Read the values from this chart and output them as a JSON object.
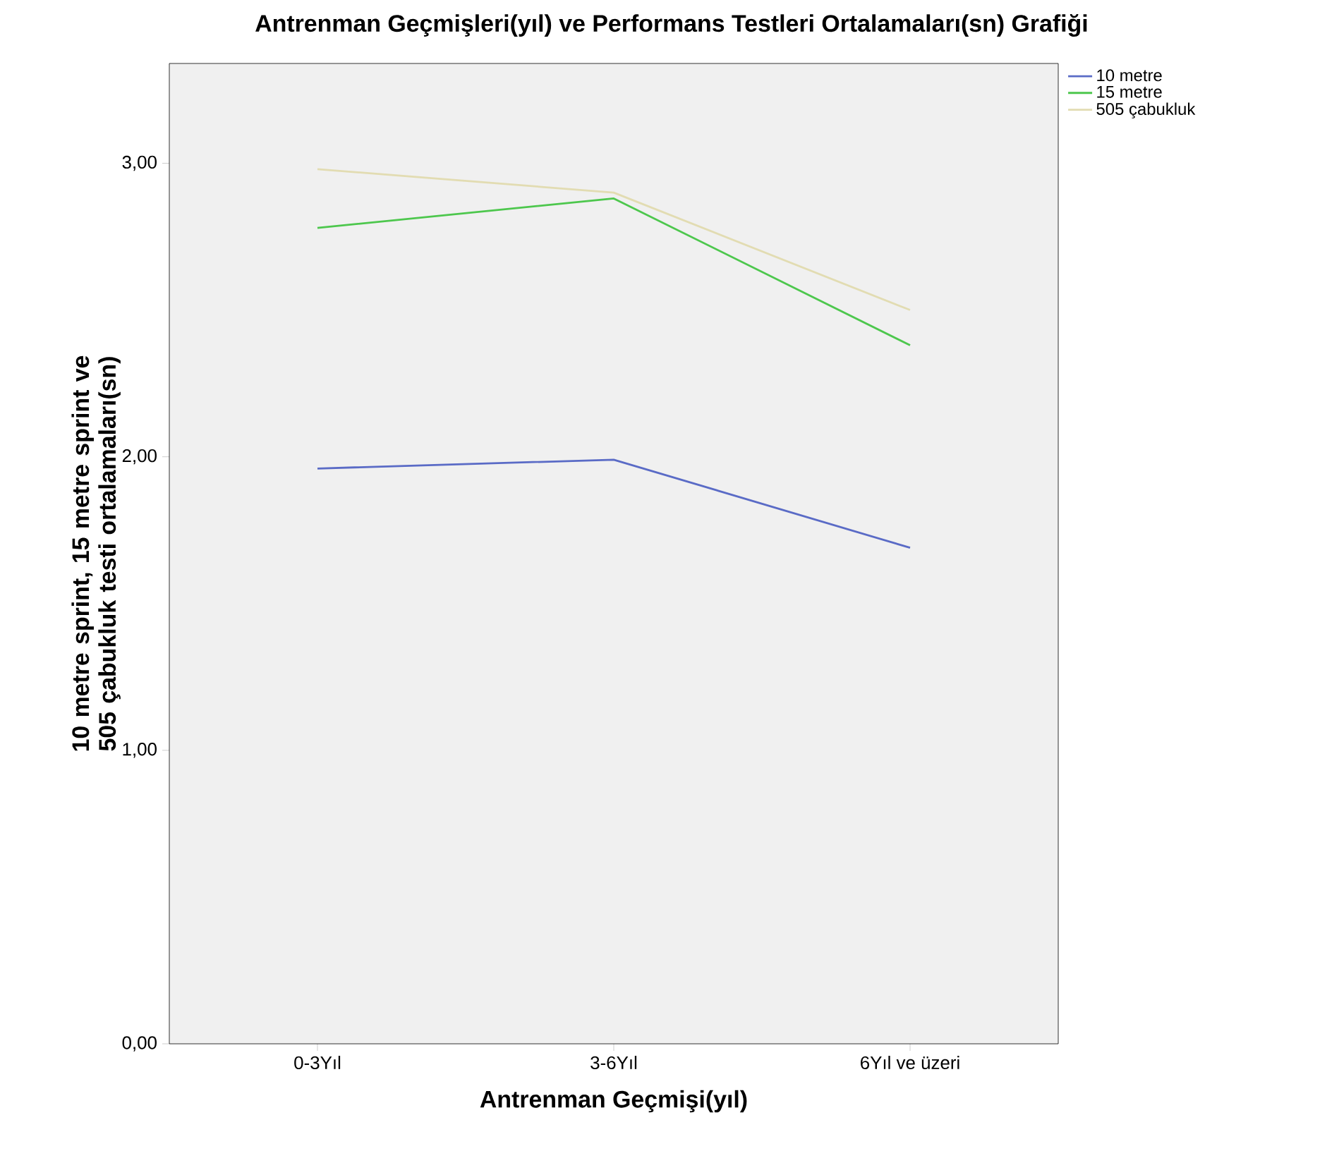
{
  "chart_data": {
    "type": "line",
    "title": "Antrenman Geçmişleri(yıl) ve Performans Testleri Ortalamaları(sn) Grafiği",
    "xlabel": "Antrenman Geçmişi(yıl)",
    "ylabel": "10 metre sprint, 15 metre sprint ve 505 çabukluk testi ortalamaları(sn)",
    "categories": [
      "0-3Yıl",
      "3-6Yıl",
      "6Yıl ve üzeri"
    ],
    "series": [
      {
        "name": "10 metre",
        "color": "#5a6bc6",
        "values": [
          1.96,
          1.99,
          1.69
        ]
      },
      {
        "name": "15 metre",
        "color": "#4dc74d",
        "values": [
          2.78,
          2.88,
          2.38
        ]
      },
      {
        "name": "505 çabukluk",
        "color": "#e2dcb2",
        "values": [
          2.98,
          2.9,
          2.5
        ]
      }
    ],
    "ylim": [
      0,
      3.34
    ],
    "yticks": [
      {
        "value": 0,
        "label": "0,00"
      },
      {
        "value": 1,
        "label": "1,00"
      },
      {
        "value": 2,
        "label": "2,00"
      },
      {
        "value": 3,
        "label": "3,00"
      }
    ],
    "grid": false,
    "legend": "top right",
    "marker": "none",
    "line_style": "solid"
  }
}
